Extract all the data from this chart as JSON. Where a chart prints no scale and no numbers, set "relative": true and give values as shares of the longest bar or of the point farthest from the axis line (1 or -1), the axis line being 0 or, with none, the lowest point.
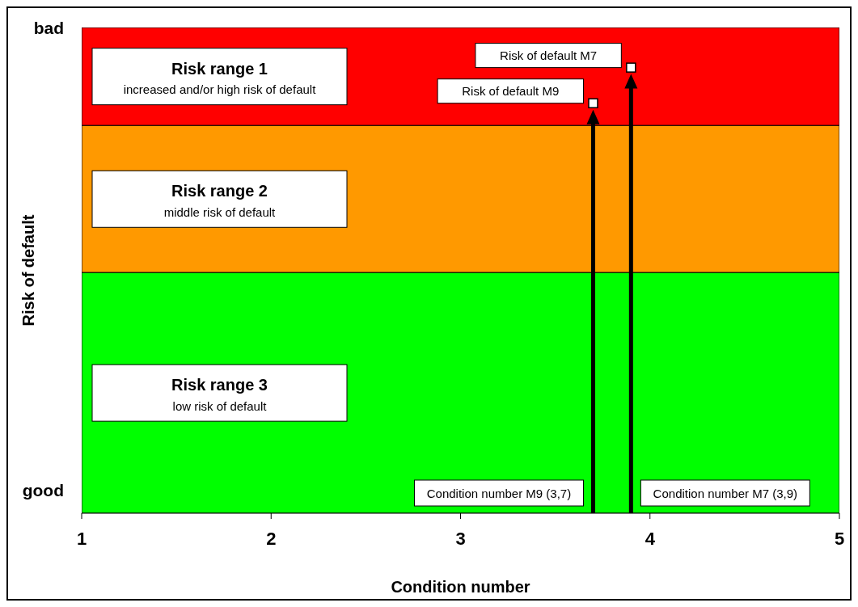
{
  "chart_data": {
    "type": "scatter",
    "xlabel": "Condition number",
    "ylabel": "Risk of default",
    "xlim": [
      1,
      5
    ],
    "xticks": [
      1,
      2,
      3,
      4,
      5
    ],
    "relative": true,
    "x": [
      3.7,
      3.9
    ],
    "values": [
      0.92,
      1
    ],
    "color": "#ffffff",
    "marker": "square",
    "grid": false,
    "legend": false,
    "bands": [
      {
        "axis": "y",
        "from": 0.87,
        "to": 1.09,
        "label": "Risk range 1",
        "color": "#ff0000"
      },
      {
        "axis": "y",
        "from": 0.54,
        "to": 0.87,
        "label": "Risk range 2",
        "color": "#ff9900"
      },
      {
        "axis": "y",
        "from": 0,
        "to": 0.54,
        "label": "Risk range 3",
        "color": "#00ff00"
      }
    ],
    "annotations": [
      "bad",
      "good",
      "increased and/or high risk of default",
      "middle risk of default",
      "low risk of default",
      "Risk of default M9",
      "Risk of default M7",
      "Condition number M9 (3,7)",
      "Condition number M7 (3,9)"
    ]
  }
}
